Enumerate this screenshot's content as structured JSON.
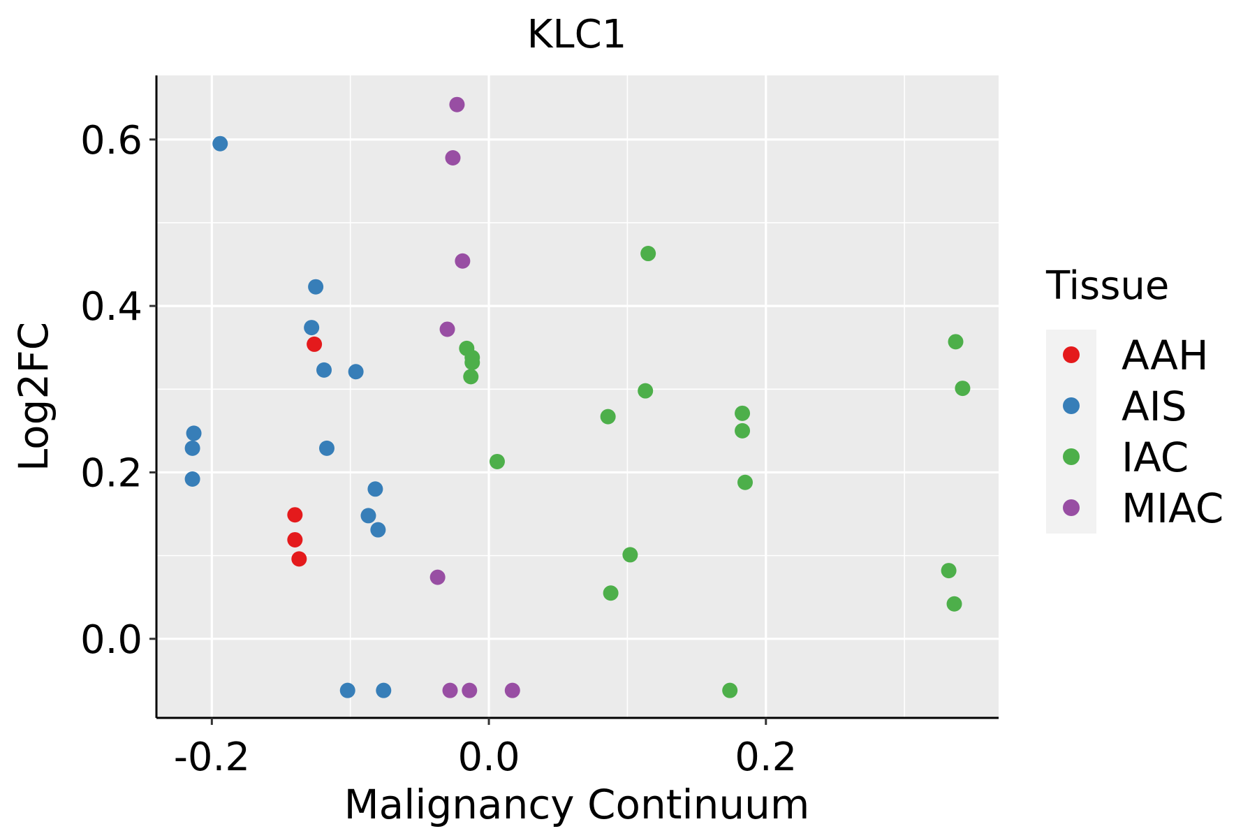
{
  "chart_data": {
    "type": "scatter",
    "title": "KLC1",
    "xlabel": "Malignancy Continuum",
    "ylabel": "Log2FC",
    "xlim": [
      -0.24,
      0.368
    ],
    "ylim": [
      -0.095,
      0.677
    ],
    "xticks": [
      -0.2,
      0.0,
      0.2
    ],
    "xtick_labels": [
      "-0.2",
      "0.0",
      "0.2"
    ],
    "xminor": [
      -0.1,
      0.1,
      0.3
    ],
    "yticks": [
      0.0,
      0.2,
      0.4,
      0.6
    ],
    "ytick_labels": [
      "0.0",
      "0.2",
      "0.4",
      "0.6"
    ],
    "yminor": [
      0.1,
      0.3,
      0.5
    ],
    "grid": true,
    "legend": {
      "title": "Tissue",
      "position": "right",
      "entries": [
        "AAH",
        "AIS",
        "IAC",
        "MIAC"
      ]
    },
    "colors": {
      "AAH": "#E41A1C",
      "AIS": "#377EB8",
      "IAC": "#4DAF4A",
      "MIAC": "#984EA3"
    },
    "series": [
      {
        "name": "AAH",
        "points": [
          [
            -0.126,
            0.354
          ],
          [
            -0.14,
            0.149
          ],
          [
            -0.14,
            0.119
          ],
          [
            -0.137,
            0.096
          ]
        ]
      },
      {
        "name": "AIS",
        "points": [
          [
            -0.194,
            0.595
          ],
          [
            -0.125,
            0.423
          ],
          [
            -0.128,
            0.374
          ],
          [
            -0.119,
            0.323
          ],
          [
            -0.096,
            0.321
          ],
          [
            -0.213,
            0.247
          ],
          [
            -0.214,
            0.229
          ],
          [
            -0.117,
            0.229
          ],
          [
            -0.214,
            0.192
          ],
          [
            -0.082,
            0.18
          ],
          [
            -0.087,
            0.148
          ],
          [
            -0.08,
            0.131
          ],
          [
            -0.102,
            -0.062
          ],
          [
            -0.076,
            -0.062
          ]
        ]
      },
      {
        "name": "IAC",
        "points": [
          [
            0.115,
            0.463
          ],
          [
            -0.016,
            0.349
          ],
          [
            -0.012,
            0.338
          ],
          [
            -0.012,
            0.332
          ],
          [
            -0.013,
            0.315
          ],
          [
            0.113,
            0.298
          ],
          [
            0.086,
            0.267
          ],
          [
            0.183,
            0.271
          ],
          [
            0.183,
            0.25
          ],
          [
            0.006,
            0.213
          ],
          [
            0.185,
            0.188
          ],
          [
            0.102,
            0.101
          ],
          [
            0.088,
            0.055
          ],
          [
            0.337,
            0.357
          ],
          [
            0.342,
            0.301
          ],
          [
            0.332,
            0.082
          ],
          [
            0.336,
            0.042
          ],
          [
            0.174,
            -0.062
          ]
        ]
      },
      {
        "name": "MIAC",
        "points": [
          [
            -0.023,
            0.642
          ],
          [
            -0.026,
            0.578
          ],
          [
            -0.019,
            0.454
          ],
          [
            -0.03,
            0.372
          ],
          [
            -0.037,
            0.074
          ],
          [
            -0.028,
            -0.062
          ],
          [
            -0.014,
            -0.062
          ],
          [
            0.017,
            -0.062
          ]
        ]
      }
    ]
  }
}
